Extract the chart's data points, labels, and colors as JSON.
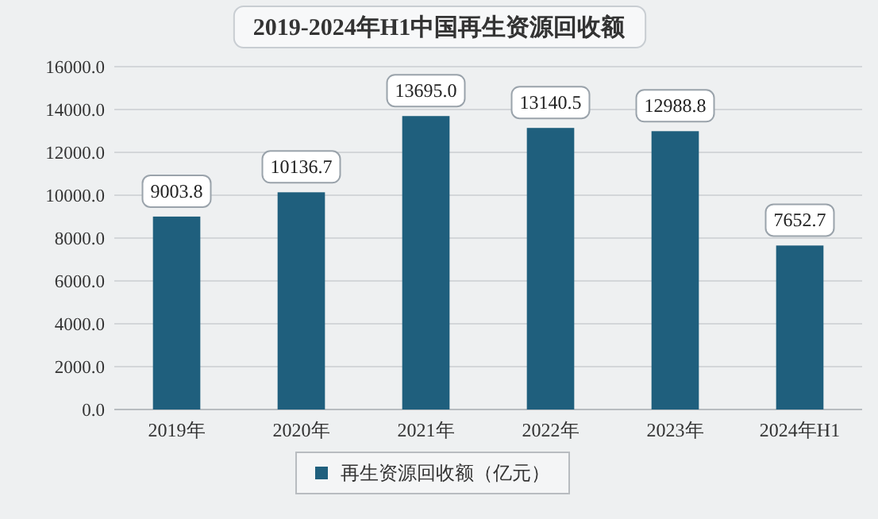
{
  "chart_data": {
    "type": "bar",
    "title": "2019-2024年H1中国再生资源回收额",
    "categories": [
      "2019年",
      "2020年",
      "2021年",
      "2022年",
      "2023年",
      "2024年H1"
    ],
    "series": [
      {
        "name": "再生资源回收额（亿元）",
        "color": "#1f5f7d",
        "values": [
          9003.8,
          10136.7,
          13695,
          13140.5,
          12988.8,
          7652.7
        ],
        "value_labels": [
          "9003.8",
          "10136.7",
          "13695.0",
          "13140.5",
          "12988.8",
          "7652.7"
        ]
      }
    ],
    "ylim": [
      0,
      16000
    ],
    "yticks": [
      {
        "value": 0,
        "label": "0.0"
      },
      {
        "value": 2000,
        "label": "2000.0"
      },
      {
        "value": 4000,
        "label": "4000.0"
      },
      {
        "value": 6000,
        "label": "6000.0"
      },
      {
        "value": 8000,
        "label": "8000.0"
      },
      {
        "value": 10000,
        "label": "10000.0"
      },
      {
        "value": 12000,
        "label": "12000.0"
      },
      {
        "value": 14000,
        "label": "14000.0"
      },
      {
        "value": 16000,
        "label": "16000.0"
      }
    ],
    "grid": "y",
    "legend": "bottom"
  }
}
